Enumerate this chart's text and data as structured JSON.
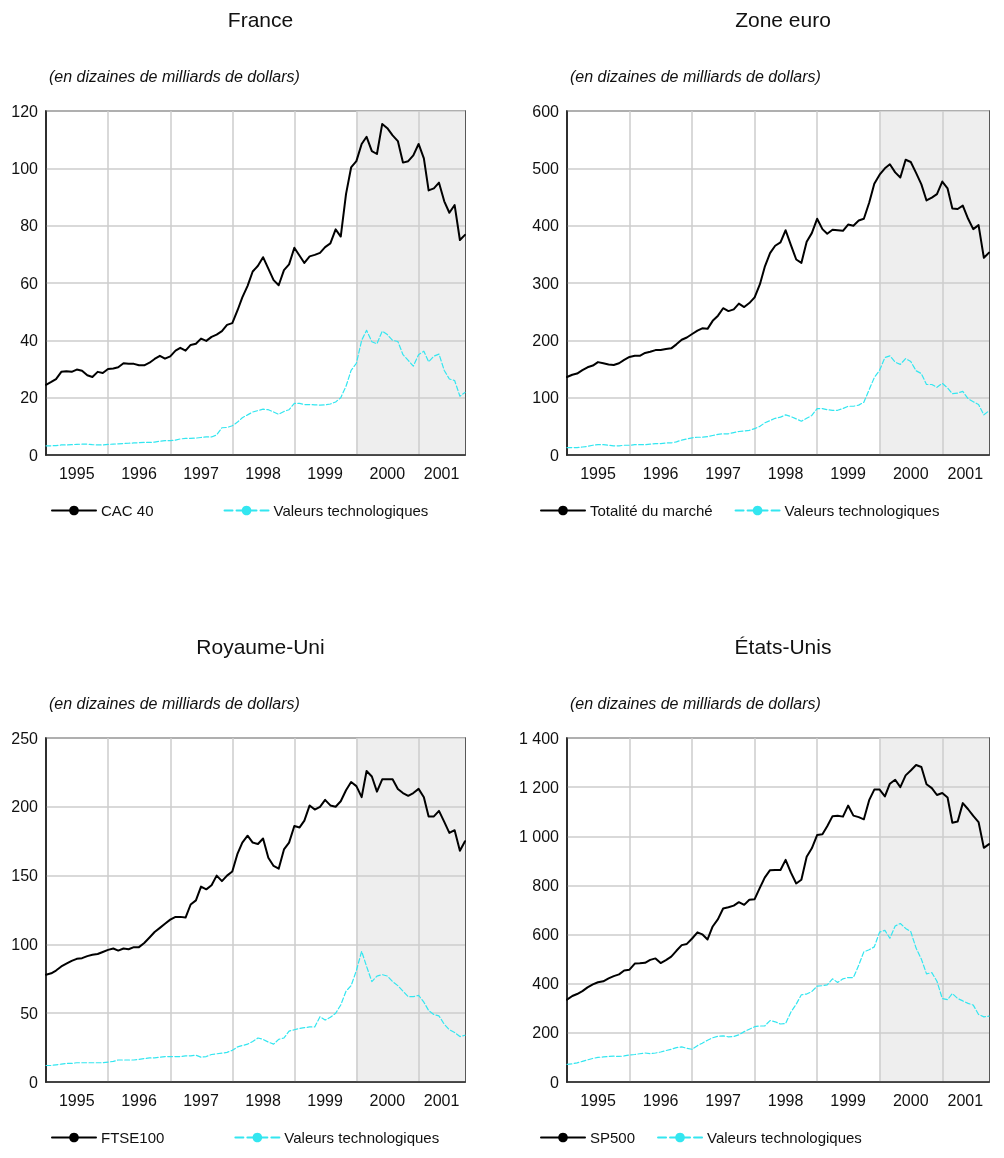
{
  "chart_data": [
    {
      "type": "line",
      "title": "France",
      "subtitle": "(en dizaines de milliards de dollars)",
      "marker": "none",
      "grid": true,
      "legend": "bottom",
      "x": [
        "1995-01",
        "1995-02",
        "1995-03",
        "1995-04",
        "1995-05",
        "1995-06",
        "1995-07",
        "1995-08",
        "1995-09",
        "1995-10",
        "1995-11",
        "1995-12",
        "1996-01",
        "1996-02",
        "1996-03",
        "1996-04",
        "1996-05",
        "1996-06",
        "1996-07",
        "1996-08",
        "1996-09",
        "1996-10",
        "1996-11",
        "1996-12",
        "1997-01",
        "1997-02",
        "1997-03",
        "1997-04",
        "1997-05",
        "1997-06",
        "1997-07",
        "1997-08",
        "1997-09",
        "1997-10",
        "1997-11",
        "1997-12",
        "1998-01",
        "1998-02",
        "1998-03",
        "1998-04",
        "1998-05",
        "1998-06",
        "1998-07",
        "1998-08",
        "1998-09",
        "1998-10",
        "1998-11",
        "1998-12",
        "1999-01",
        "1999-02",
        "1999-03",
        "1999-04",
        "1999-05",
        "1999-06",
        "1999-07",
        "1999-08",
        "1999-09",
        "1999-10",
        "1999-11",
        "1999-12",
        "2000-01",
        "2000-02",
        "2000-03",
        "2000-04",
        "2000-05",
        "2000-06",
        "2000-07",
        "2000-08",
        "2000-09",
        "2000-10",
        "2000-11",
        "2000-12",
        "2001-01",
        "2001-02",
        "2001-03",
        "2001-04",
        "2001-05",
        "2001-06",
        "2001-07",
        "2001-08",
        "2001-09",
        "2001-10"
      ],
      "xlim": [
        "1995-01",
        "2001-10"
      ],
      "xticks": [
        {
          "value": "1995-07",
          "label": "1995"
        },
        {
          "value": "1996-01",
          "label": null
        },
        {
          "value": "1996-07",
          "label": "1996"
        },
        {
          "value": "1997-01",
          "label": null
        },
        {
          "value": "1997-07",
          "label": "1997"
        },
        {
          "value": "1998-01",
          "label": null
        },
        {
          "value": "1998-07",
          "label": "1998"
        },
        {
          "value": "1999-01",
          "label": null
        },
        {
          "value": "1999-07",
          "label": "1999"
        },
        {
          "value": "2000-01",
          "label": null
        },
        {
          "value": "2000-07",
          "label": "2000"
        },
        {
          "value": "2001-01",
          "label": null
        },
        {
          "value": "2001-05-16",
          "label": "2001"
        }
      ],
      "ylim": [
        0,
        120
      ],
      "yticks": [
        0,
        20,
        40,
        60,
        80,
        100,
        120
      ],
      "bands": [
        {
          "axis": "x",
          "from": "2000-01",
          "to": "2001-10",
          "color": "#eeeeee"
        }
      ],
      "series": [
        {
          "name": "CAC 40",
          "color": "#000000",
          "line_style": "solid",
          "values": [
            24.5,
            25.5,
            26.5,
            29,
            29.2,
            29,
            29.8,
            29.4,
            27.8,
            27.2,
            29,
            28.6,
            30,
            30.2,
            30.6,
            32,
            31.8,
            31.8,
            31.3,
            31.3,
            32.2,
            33.5,
            34.6,
            33.6,
            34.4,
            36.4,
            37.4,
            36.4,
            38.4,
            38.8,
            40.6,
            39.8,
            41.2,
            42,
            43.2,
            45.4,
            46,
            50.5,
            55,
            59,
            64,
            66,
            69,
            65,
            61,
            59.2,
            64.5,
            66.5,
            72.3,
            69.5,
            67,
            69.3,
            69.8,
            70.5,
            72.5,
            73.8,
            78.7,
            76.2,
            91,
            100.3,
            102.5,
            108.5,
            111,
            106,
            105,
            115.5,
            114,
            111.5,
            109.5,
            102,
            102.5,
            104.5,
            108.5,
            103.5,
            92.3,
            93,
            95,
            88.5,
            84.5,
            87.2,
            75,
            76.8
          ]
        },
        {
          "name": "Valeurs technologiques",
          "color": "#33e6f0",
          "line_style": "dashed",
          "values": [
            3.2,
            3.2,
            3.3,
            3.5,
            3.5,
            3.6,
            3.7,
            3.8,
            3.8,
            3.6,
            3.5,
            3.5,
            3.7,
            3.8,
            3.9,
            4,
            4.1,
            4.2,
            4.3,
            4.4,
            4.4,
            4.5,
            4.8,
            5,
            5,
            5.2,
            5.6,
            5.8,
            5.8,
            5.9,
            6.1,
            6.3,
            6.3,
            7,
            9.5,
            9.6,
            10.2,
            11.5,
            13,
            14,
            15,
            15.5,
            16,
            15.8,
            15,
            14.2,
            15.2,
            15.8,
            18,
            18,
            17.6,
            17.6,
            17.5,
            17.4,
            17.5,
            17.8,
            18.5,
            20,
            24,
            29.5,
            32,
            40,
            43.5,
            39.5,
            38.8,
            43.2,
            42,
            40,
            39.6,
            35,
            33,
            31,
            35,
            36.2,
            32.5,
            34.5,
            35.2,
            29.5,
            26.5,
            26,
            20.5,
            21.8
          ]
        }
      ]
    },
    {
      "type": "line",
      "title": "Zone euro",
      "subtitle": "(en dizaines de milliards de dollars)",
      "marker": "none",
      "grid": true,
      "legend": "bottom",
      "x": [
        "1995-01",
        "1995-02",
        "1995-03",
        "1995-04",
        "1995-05",
        "1995-06",
        "1995-07",
        "1995-08",
        "1995-09",
        "1995-10",
        "1995-11",
        "1995-12",
        "1996-01",
        "1996-02",
        "1996-03",
        "1996-04",
        "1996-05",
        "1996-06",
        "1996-07",
        "1996-08",
        "1996-09",
        "1996-10",
        "1996-11",
        "1996-12",
        "1997-01",
        "1997-02",
        "1997-03",
        "1997-04",
        "1997-05",
        "1997-06",
        "1997-07",
        "1997-08",
        "1997-09",
        "1997-10",
        "1997-11",
        "1997-12",
        "1998-01",
        "1998-02",
        "1998-03",
        "1998-04",
        "1998-05",
        "1998-06",
        "1998-07",
        "1998-08",
        "1998-09",
        "1998-10",
        "1998-11",
        "1998-12",
        "1999-01",
        "1999-02",
        "1999-03",
        "1999-04",
        "1999-05",
        "1999-06",
        "1999-07",
        "1999-08",
        "1999-09",
        "1999-10",
        "1999-11",
        "1999-12",
        "2000-01",
        "2000-02",
        "2000-03",
        "2000-04",
        "2000-05",
        "2000-06",
        "2000-07",
        "2000-08",
        "2000-09",
        "2000-10",
        "2000-11",
        "2000-12",
        "2001-01",
        "2001-02",
        "2001-03",
        "2001-04",
        "2001-05",
        "2001-06",
        "2001-07",
        "2001-08",
        "2001-09",
        "2001-10"
      ],
      "xlim": [
        "1995-01",
        "2001-10"
      ],
      "xticks": [
        {
          "value": "1995-07",
          "label": "1995"
        },
        {
          "value": "1996-01",
          "label": null
        },
        {
          "value": "1996-07",
          "label": "1996"
        },
        {
          "value": "1997-01",
          "label": null
        },
        {
          "value": "1997-07",
          "label": "1997"
        },
        {
          "value": "1998-01",
          "label": null
        },
        {
          "value": "1998-07",
          "label": "1998"
        },
        {
          "value": "1999-01",
          "label": null
        },
        {
          "value": "1999-07",
          "label": "1999"
        },
        {
          "value": "2000-01",
          "label": null
        },
        {
          "value": "2000-07",
          "label": "2000"
        },
        {
          "value": "2001-01",
          "label": null
        },
        {
          "value": "2001-05-16",
          "label": "2001"
        }
      ],
      "ylim": [
        0,
        600
      ],
      "yticks": [
        0,
        100,
        200,
        300,
        400,
        500,
        600
      ],
      "bands": [
        {
          "axis": "x",
          "from": "2000-01",
          "to": "2001-10",
          "color": "#eeeeee"
        }
      ],
      "series": [
        {
          "name": "Totalité du marché",
          "color": "#000000",
          "line_style": "solid",
          "values": [
            136,
            140,
            142,
            148,
            153,
            156,
            162,
            160,
            158,
            157,
            160,
            166,
            171,
            173,
            173,
            178,
            180,
            183,
            183,
            185,
            186,
            193,
            201,
            205,
            211,
            217,
            221,
            220,
            234,
            243,
            256,
            251,
            254,
            264,
            258,
            265,
            275,
            298,
            328,
            352,
            365,
            371,
            392,
            366,
            341,
            335,
            372,
            387,
            412,
            394,
            386,
            393,
            392,
            391,
            402,
            400,
            409,
            412,
            440,
            473,
            489,
            500,
            507,
            493,
            484,
            515,
            511,
            492,
            472,
            444,
            449,
            455,
            477,
            465,
            430,
            429,
            435,
            412,
            394,
            401,
            344,
            353
          ]
        },
        {
          "name": "Valeurs technologiques",
          "color": "#33e6f0",
          "line_style": "dashed",
          "values": [
            13,
            13,
            13,
            14,
            15,
            17,
            18,
            18,
            17,
            16,
            16,
            17,
            17,
            18,
            18,
            18,
            19,
            20,
            20,
            21,
            21,
            23,
            26,
            28,
            30,
            31,
            31,
            32,
            34,
            36,
            37,
            37,
            39,
            41,
            42,
            43,
            46,
            50,
            56,
            60,
            64,
            66,
            70,
            67,
            63,
            59,
            64,
            69,
            81,
            81,
            79,
            78,
            78,
            81,
            85,
            85,
            87,
            92,
            114,
            135,
            148,
            170,
            173,
            162,
            158,
            168,
            163,
            147,
            142,
            123,
            123,
            118,
            125,
            117,
            107,
            108,
            111,
            98,
            93,
            88,
            70,
            77
          ]
        }
      ]
    },
    {
      "type": "line",
      "title": "Royaume-Uni",
      "subtitle": "(en dizaines de milliards de dollars)",
      "marker": "none",
      "grid": true,
      "legend": "bottom",
      "x": [
        "1995-01",
        "1995-02",
        "1995-03",
        "1995-04",
        "1995-05",
        "1995-06",
        "1995-07",
        "1995-08",
        "1995-09",
        "1995-10",
        "1995-11",
        "1995-12",
        "1996-01",
        "1996-02",
        "1996-03",
        "1996-04",
        "1996-05",
        "1996-06",
        "1996-07",
        "1996-08",
        "1996-09",
        "1996-10",
        "1996-11",
        "1996-12",
        "1997-01",
        "1997-02",
        "1997-03",
        "1997-04",
        "1997-05",
        "1997-06",
        "1997-07",
        "1997-08",
        "1997-09",
        "1997-10",
        "1997-11",
        "1997-12",
        "1998-01",
        "1998-02",
        "1998-03",
        "1998-04",
        "1998-05",
        "1998-06",
        "1998-07",
        "1998-08",
        "1998-09",
        "1998-10",
        "1998-11",
        "1998-12",
        "1999-01",
        "1999-02",
        "1999-03",
        "1999-04",
        "1999-05",
        "1999-06",
        "1999-07",
        "1999-08",
        "1999-09",
        "1999-10",
        "1999-11",
        "1999-12",
        "2000-01",
        "2000-02",
        "2000-03",
        "2000-04",
        "2000-05",
        "2000-06",
        "2000-07",
        "2000-08",
        "2000-09",
        "2000-10",
        "2000-11",
        "2000-12",
        "2001-01",
        "2001-02",
        "2001-03",
        "2001-04",
        "2001-05",
        "2001-06",
        "2001-07",
        "2001-08",
        "2001-09",
        "2001-10"
      ],
      "xlim": [
        "1995-01",
        "2001-10"
      ],
      "xticks": [
        {
          "value": "1995-07",
          "label": "1995"
        },
        {
          "value": "1996-01",
          "label": null
        },
        {
          "value": "1996-07",
          "label": "1996"
        },
        {
          "value": "1997-01",
          "label": null
        },
        {
          "value": "1997-07",
          "label": "1997"
        },
        {
          "value": "1998-01",
          "label": null
        },
        {
          "value": "1998-07",
          "label": "1998"
        },
        {
          "value": "1999-01",
          "label": null
        },
        {
          "value": "1999-07",
          "label": "1999"
        },
        {
          "value": "2000-01",
          "label": null
        },
        {
          "value": "2000-07",
          "label": "2000"
        },
        {
          "value": "2001-01",
          "label": null
        },
        {
          "value": "2001-05-16",
          "label": "2001"
        }
      ],
      "ylim": [
        0,
        250
      ],
      "yticks": [
        0,
        50,
        100,
        150,
        200,
        250
      ],
      "bands": [
        {
          "axis": "x",
          "from": "2000-01",
          "to": "2001-10",
          "color": "#eeeeee"
        }
      ],
      "series": [
        {
          "name": "FTSE100",
          "color": "#000000",
          "line_style": "solid",
          "values": [
            78,
            79,
            81,
            84,
            86,
            88,
            89.5,
            90,
            91.5,
            92.5,
            93,
            94.5,
            96,
            97,
            95.5,
            97,
            96.5,
            98,
            98,
            101,
            105,
            109,
            112,
            115,
            118,
            120,
            120,
            119.5,
            129,
            132,
            142,
            140,
            143,
            150,
            146,
            150,
            153,
            166,
            174,
            179,
            174,
            173,
            177,
            163,
            157,
            155,
            169,
            174,
            186,
            185,
            190,
            201,
            198,
            200,
            205,
            201,
            200,
            204,
            212,
            218,
            215,
            207,
            226,
            222,
            211,
            220,
            220,
            220,
            213,
            210,
            208,
            210,
            213,
            207,
            193,
            193,
            197,
            189,
            181,
            183,
            168,
            175
          ]
        },
        {
          "name": "Valeurs technologiques",
          "color": "#33e6f0",
          "line_style": "dashed",
          "values": [
            12,
            12,
            12.5,
            13,
            13.5,
            13.5,
            14,
            14,
            14,
            14,
            14,
            14,
            14.5,
            15,
            16,
            16,
            16,
            16,
            16.5,
            17,
            17.5,
            17.5,
            18,
            18.5,
            18.5,
            18.5,
            18.5,
            19,
            19,
            19.5,
            18,
            18.5,
            20,
            20.5,
            21,
            21.5,
            23,
            25.5,
            26.5,
            27.5,
            29.5,
            32,
            31,
            29,
            27.5,
            31,
            32,
            37,
            38,
            39,
            39.5,
            40,
            40,
            47.5,
            45,
            47,
            50,
            56,
            66,
            70,
            81,
            95,
            84,
            73,
            77,
            78,
            77,
            73,
            70,
            66,
            62,
            62,
            63,
            58,
            52,
            49,
            48,
            42,
            38,
            36,
            33,
            34
          ]
        }
      ]
    },
    {
      "type": "line",
      "title": "États-Unis",
      "subtitle": "(en dizaines de milliards de dollars)",
      "marker": "none",
      "grid": true,
      "legend": "bottom",
      "x": [
        "1995-01",
        "1995-02",
        "1995-03",
        "1995-04",
        "1995-05",
        "1995-06",
        "1995-07",
        "1995-08",
        "1995-09",
        "1995-10",
        "1995-11",
        "1995-12",
        "1996-01",
        "1996-02",
        "1996-03",
        "1996-04",
        "1996-05",
        "1996-06",
        "1996-07",
        "1996-08",
        "1996-09",
        "1996-10",
        "1996-11",
        "1996-12",
        "1997-01",
        "1997-02",
        "1997-03",
        "1997-04",
        "1997-05",
        "1997-06",
        "1997-07",
        "1997-08",
        "1997-09",
        "1997-10",
        "1997-11",
        "1997-12",
        "1998-01",
        "1998-02",
        "1998-03",
        "1998-04",
        "1998-05",
        "1998-06",
        "1998-07",
        "1998-08",
        "1998-09",
        "1998-10",
        "1998-11",
        "1998-12",
        "1999-01",
        "1999-02",
        "1999-03",
        "1999-04",
        "1999-05",
        "1999-06",
        "1999-07",
        "1999-08",
        "1999-09",
        "1999-10",
        "1999-11",
        "1999-12",
        "2000-01",
        "2000-02",
        "2000-03",
        "2000-04",
        "2000-05",
        "2000-06",
        "2000-07",
        "2000-08",
        "2000-09",
        "2000-10",
        "2000-11",
        "2000-12",
        "2001-01",
        "2001-02",
        "2001-03",
        "2001-04",
        "2001-05",
        "2001-06",
        "2001-07",
        "2001-08",
        "2001-09",
        "2001-10"
      ],
      "xlim": [
        "1995-01",
        "2001-10"
      ],
      "xticks": [
        {
          "value": "1995-07",
          "label": "1995"
        },
        {
          "value": "1996-01",
          "label": null
        },
        {
          "value": "1996-07",
          "label": "1996"
        },
        {
          "value": "1997-01",
          "label": null
        },
        {
          "value": "1997-07",
          "label": "1997"
        },
        {
          "value": "1998-01",
          "label": null
        },
        {
          "value": "1998-07",
          "label": "1998"
        },
        {
          "value": "1999-01",
          "label": null
        },
        {
          "value": "1999-07",
          "label": "1999"
        },
        {
          "value": "2000-01",
          "label": null
        },
        {
          "value": "2000-07",
          "label": "2000"
        },
        {
          "value": "2001-01",
          "label": null
        },
        {
          "value": "2001-05-16",
          "label": "2001"
        }
      ],
      "ylim": [
        0,
        1400
      ],
      "yticks": [
        0,
        200,
        400,
        600,
        800,
        {
          "value": 1000,
          "label": "1 000"
        },
        {
          "value": 1200,
          "label": "1 200"
        },
        {
          "value": 1400,
          "label": "1 400"
        }
      ],
      "bands": [
        {
          "axis": "x",
          "from": "2000-01",
          "to": "2001-10",
          "color": "#eeeeee"
        }
      ],
      "series": [
        {
          "name": "SP500",
          "color": "#000000",
          "line_style": "solid",
          "values": [
            335,
            350,
            358,
            370,
            385,
            397,
            406,
            410,
            422,
            431,
            438,
            454,
            457,
            482,
            483,
            485,
            497,
            503,
            484,
            496,
            510,
            534,
            557,
            562,
            584,
            609,
            601,
            580,
            633,
            663,
            706,
            711,
            718,
            732,
            721,
            742,
            744,
            791,
            832,
            862,
            863,
            863,
            904,
            852,
            808,
            823,
            917,
            951,
            1005,
            1008,
            1041,
            1082,
            1084,
            1080,
            1125,
            1084,
            1078,
            1069,
            1147,
            1190,
            1190,
            1162,
            1214,
            1230,
            1200,
            1248,
            1268,
            1290,
            1282,
            1212,
            1196,
            1168,
            1176,
            1158,
            1055,
            1060,
            1135,
            1110,
            1083,
            1058,
            953,
            968
          ]
        },
        {
          "name": "Valeurs technologiques",
          "color": "#33e6f0",
          "line_style": "dashed",
          "values": [
            72,
            74,
            78,
            84,
            90,
            96,
            100,
            102,
            104,
            105,
            104,
            106,
            110,
            112,
            115,
            118,
            115,
            118,
            122,
            128,
            133,
            140,
            143,
            137,
            133,
            148,
            158,
            170,
            180,
            186,
            188,
            184,
            185,
            192,
            205,
            215,
            225,
            228,
            228,
            250,
            245,
            236,
            238,
            285,
            317,
            355,
            358,
            368,
            390,
            392,
            395,
            420,
            405,
            420,
            425,
            425,
            475,
            530,
            538,
            550,
            610,
            617,
            585,
            635,
            645,
            625,
            612,
            545,
            500,
            440,
            445,
            410,
            340,
            335,
            360,
            340,
            330,
            320,
            313,
            275,
            265,
            268
          ]
        }
      ]
    }
  ]
}
